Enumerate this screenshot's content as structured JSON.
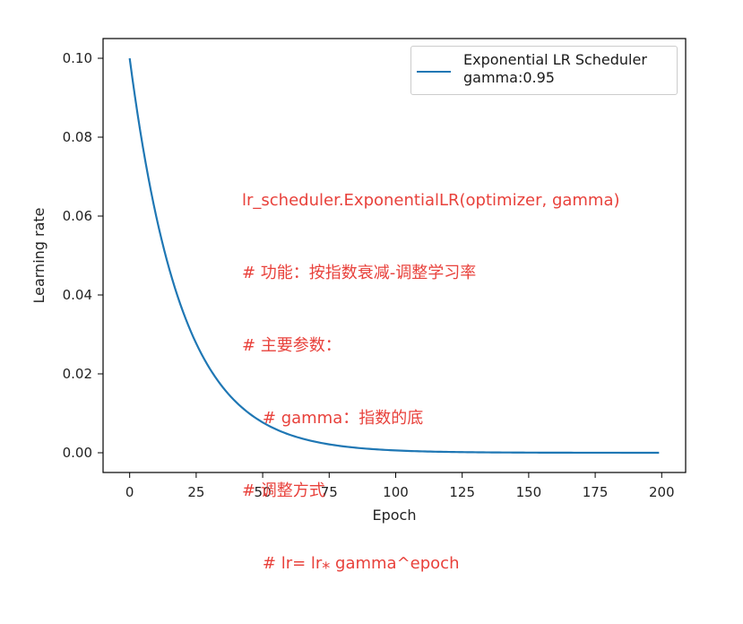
{
  "chart_data": {
    "type": "line",
    "title": "",
    "xlabel": "Epoch",
    "ylabel": "Learning rate",
    "xlim": [
      -10,
      209
    ],
    "ylim": [
      -0.005,
      0.105
    ],
    "xticks": [
      "0",
      "25",
      "50",
      "75",
      "100",
      "125",
      "150",
      "175",
      "200"
    ],
    "yticks": [
      "0.00",
      "0.02",
      "0.04",
      "0.06",
      "0.08",
      "0.10"
    ],
    "grid": false,
    "legend": {
      "placement": "top-right",
      "entries": [
        "Exponential LR Scheduler\ngamma:0.95"
      ]
    },
    "series": [
      {
        "name": "Exponential LR Scheduler\ngamma:0.95",
        "color": "#1f77b4",
        "initial_lr": 0.1,
        "gamma": 0.95,
        "epochs": [
          0,
          199
        ],
        "sample_points": [
          {
            "x": 0,
            "y": 0.1
          },
          {
            "x": 25,
            "y": 0.0277
          },
          {
            "x": 50,
            "y": 0.0077
          },
          {
            "x": 75,
            "y": 0.0021
          },
          {
            "x": 100,
            "y": 0.0006
          },
          {
            "x": 150,
            "y": 5e-05
          },
          {
            "x": 199,
            "y": 0.0
          }
        ]
      }
    ],
    "annotations": [
      "lr_scheduler.ExponentialLR(optimizer, gamma)",
      "# 功能：按指数衰减-调整学习率",
      "# 主要参数：",
      "    # gamma：指数的底",
      "# 调整方式",
      "    # lr= lr⁎ gamma^epoch"
    ]
  }
}
